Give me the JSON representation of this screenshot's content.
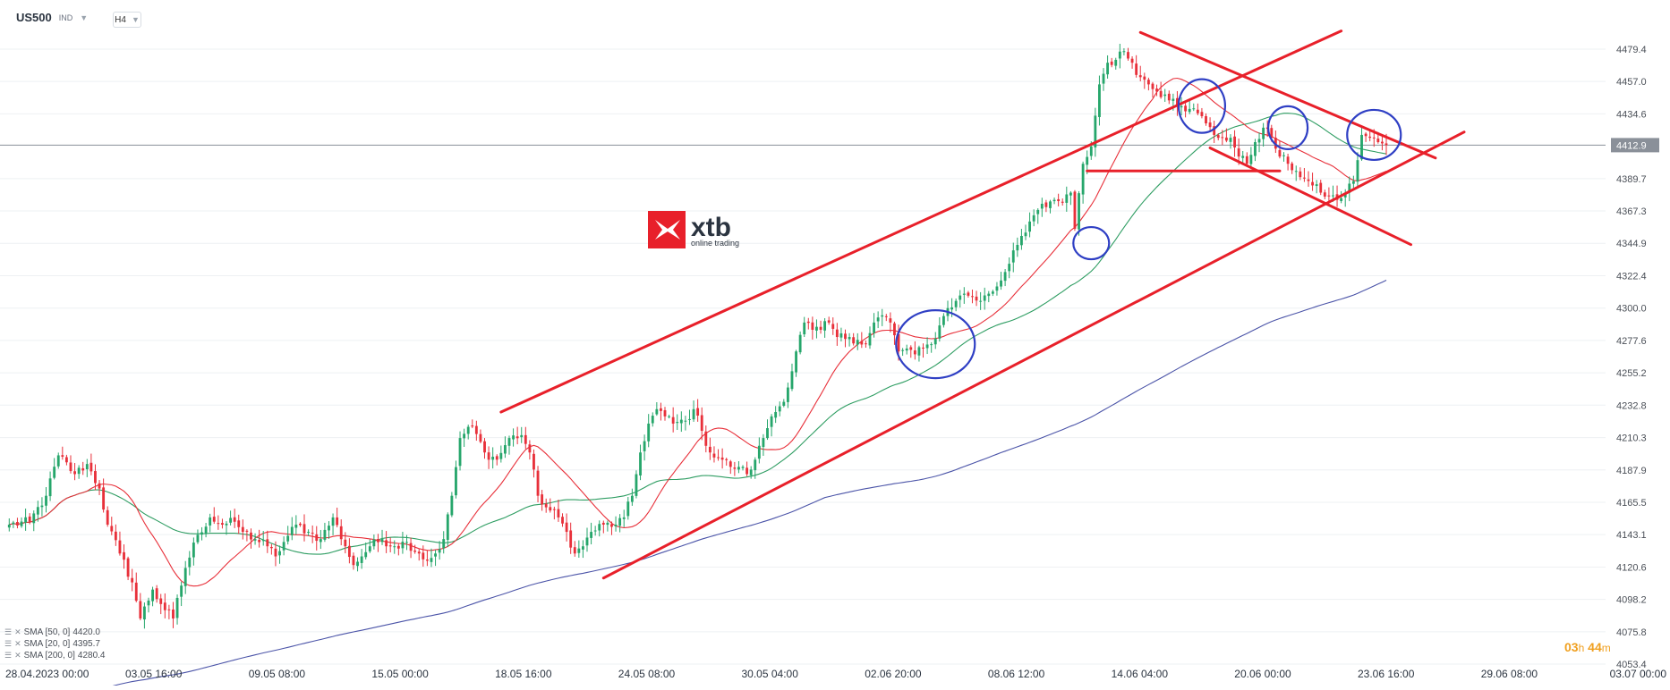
{
  "header": {
    "symbol": "US500",
    "badge": "IND",
    "timeframe": "H4"
  },
  "logo": {
    "name": "xtb",
    "tagline": "online trading"
  },
  "indicators": [
    {
      "label": "SMA [50, 0]",
      "value": "4420.0",
      "color": "#2e9d62"
    },
    {
      "label": "SMA [20, 0]",
      "value": "4395.7",
      "color": "#e8303a"
    },
    {
      "label": "SMA [200, 0]",
      "value": "4280.4",
      "color": "#4b54a8"
    }
  ],
  "countdown": {
    "hours": "03",
    "h_unit": "h",
    "minutes": "44",
    "m_unit": "m"
  },
  "chart_data": {
    "type": "candlestick",
    "symbol": "US500",
    "timeframe": "H4",
    "current_price": 4412.9,
    "y_ticks": [
      4479.4,
      4457.0,
      4434.6,
      4412.9,
      4389.7,
      4367.3,
      4344.9,
      4322.4,
      4300.0,
      4277.6,
      4255.2,
      4232.8,
      4210.3,
      4187.9,
      4165.5,
      4143.1,
      4120.6,
      4098.2,
      4075.8,
      4053.4
    ],
    "x_tick_labels": [
      "28.04.2023  00:00",
      "03.05  16:00",
      "09.05  08:00",
      "15.05  00:00",
      "18.05  16:00",
      "24.05  08:00",
      "30.05  04:00",
      "02.06  20:00",
      "08.06  12:00",
      "14.06  04:00",
      "20.06  00:00",
      "23.06  16:00",
      "29.06  08:00",
      "03.07  00:00"
    ],
    "ylim": [
      4053.4,
      4492
    ],
    "colors": {
      "up": "#26a66b",
      "down": "#e8303a",
      "annotation_line": "#e8202a",
      "annotation_circle": "#2f3fc4"
    },
    "anchors": [
      [
        0,
        4150
      ],
      [
        5,
        4152
      ],
      [
        9,
        4170
      ],
      [
        12,
        4198
      ],
      [
        16,
        4185
      ],
      [
        19,
        4192
      ],
      [
        22,
        4175
      ],
      [
        24,
        4150
      ],
      [
        27,
        4130
      ],
      [
        30,
        4110
      ],
      [
        32,
        4085
      ],
      [
        35,
        4105
      ],
      [
        37,
        4095
      ],
      [
        40,
        4085
      ],
      [
        43,
        4120
      ],
      [
        46,
        4143
      ],
      [
        49,
        4155
      ],
      [
        52,
        4150
      ],
      [
        55,
        4152
      ],
      [
        57,
        4145
      ],
      [
        60,
        4140
      ],
      [
        63,
        4135
      ],
      [
        65,
        4128
      ],
      [
        67,
        4138
      ],
      [
        70,
        4150
      ],
      [
        73,
        4145
      ],
      [
        76,
        4140
      ],
      [
        79,
        4155
      ],
      [
        82,
        4135
      ],
      [
        84,
        4122
      ],
      [
        86,
        4128
      ],
      [
        88,
        4135
      ],
      [
        91,
        4140
      ],
      [
        94,
        4135
      ],
      [
        97,
        4138
      ],
      [
        100,
        4130
      ],
      [
        102,
        4125
      ],
      [
        104,
        4130
      ],
      [
        106,
        4140
      ],
      [
        108,
        4170
      ],
      [
        110,
        4210
      ],
      [
        113,
        4218
      ],
      [
        116,
        4200
      ],
      [
        119,
        4195
      ],
      [
        122,
        4210
      ],
      [
        125,
        4212
      ],
      [
        127,
        4200
      ],
      [
        129,
        4170
      ],
      [
        131,
        4162
      ],
      [
        134,
        4155
      ],
      [
        136,
        4145
      ],
      [
        138,
        4130
      ],
      [
        140,
        4135
      ],
      [
        142,
        4145
      ],
      [
        145,
        4150
      ],
      [
        148,
        4150
      ],
      [
        150,
        4155
      ],
      [
        152,
        4170
      ],
      [
        154,
        4200
      ],
      [
        156,
        4220
      ],
      [
        158,
        4230
      ],
      [
        160,
        4225
      ],
      [
        162,
        4220
      ],
      [
        165,
        4222
      ],
      [
        167,
        4230
      ],
      [
        169,
        4215
      ],
      [
        171,
        4200
      ],
      [
        174,
        4195
      ],
      [
        176,
        4190
      ],
      [
        178,
        4190
      ],
      [
        180,
        4185
      ],
      [
        182,
        4195
      ],
      [
        184,
        4210
      ],
      [
        186,
        4225
      ],
      [
        188,
        4232
      ],
      [
        190,
        4245
      ],
      [
        192,
        4270
      ],
      [
        194,
        4290
      ],
      [
        196,
        4285
      ],
      [
        198,
        4285
      ],
      [
        200,
        4290
      ],
      [
        202,
        4280
      ],
      [
        205,
        4280
      ],
      [
        207,
        4278
      ],
      [
        209,
        4275
      ],
      [
        211,
        4290
      ],
      [
        213,
        4295
      ],
      [
        215,
        4290
      ],
      [
        217,
        4270
      ],
      [
        219,
        4272
      ],
      [
        221,
        4268
      ],
      [
        223,
        4272
      ],
      [
        225,
        4275
      ],
      [
        227,
        4288
      ],
      [
        229,
        4300
      ],
      [
        231,
        4305
      ],
      [
        233,
        4310
      ],
      [
        235,
        4308
      ],
      [
        237,
        4305
      ],
      [
        239,
        4310
      ],
      [
        241,
        4315
      ],
      [
        243,
        4325
      ],
      [
        245,
        4340
      ],
      [
        247,
        4350
      ],
      [
        249,
        4360
      ],
      [
        251,
        4368
      ],
      [
        253,
        4370
      ],
      [
        255,
        4375
      ],
      [
        257,
        4373
      ],
      [
        259,
        4380
      ],
      [
        260,
        4355
      ],
      [
        262,
        4400
      ],
      [
        264,
        4412
      ],
      [
        266,
        4455
      ],
      [
        268,
        4470
      ],
      [
        270,
        4472
      ],
      [
        272,
        4478
      ],
      [
        274,
        4470
      ],
      [
        276,
        4460
      ],
      [
        278,
        4455
      ],
      [
        280,
        4450
      ],
      [
        282,
        4448
      ],
      [
        284,
        4445
      ],
      [
        286,
        4440
      ],
      [
        288,
        4438
      ],
      [
        290,
        4435
      ],
      [
        292,
        4428
      ],
      [
        294,
        4420
      ],
      [
        296,
        4418
      ],
      [
        298,
        4418
      ],
      [
        300,
        4405
      ],
      [
        302,
        4400
      ],
      [
        304,
        4415
      ],
      [
        306,
        4425
      ],
      [
        308,
        4418
      ],
      [
        310,
        4405
      ],
      [
        312,
        4400
      ],
      [
        314,
        4395
      ],
      [
        316,
        4390
      ],
      [
        318,
        4385
      ],
      [
        320,
        4380
      ],
      [
        322,
        4378
      ],
      [
        324,
        4375
      ],
      [
        326,
        4380
      ],
      [
        328,
        4388
      ],
      [
        330,
        4420
      ],
      [
        332,
        4418
      ],
      [
        334,
        4415
      ],
      [
        336,
        4412.9
      ]
    ],
    "overlays": {
      "channel_upper": [
        [
          120,
          4228
        ],
        [
          325,
          4492
        ]
      ],
      "channel_lower": [
        [
          145,
          4113
        ],
        [
          355,
          4422
        ]
      ],
      "wedge_upper": [
        [
          276,
          4491
        ],
        [
          348,
          4404
        ]
      ],
      "wedge_lower": [
        [
          293,
          4411
        ],
        [
          342,
          4344
        ]
      ],
      "horizontal_support": [
        [
          263,
          4395
        ],
        [
          310,
          4395
        ]
      ],
      "circles": [
        [
          291,
          4440
        ],
        [
          312,
          4425
        ],
        [
          333,
          4420
        ],
        [
          264,
          4345
        ],
        [
          226,
          4275
        ]
      ]
    }
  }
}
